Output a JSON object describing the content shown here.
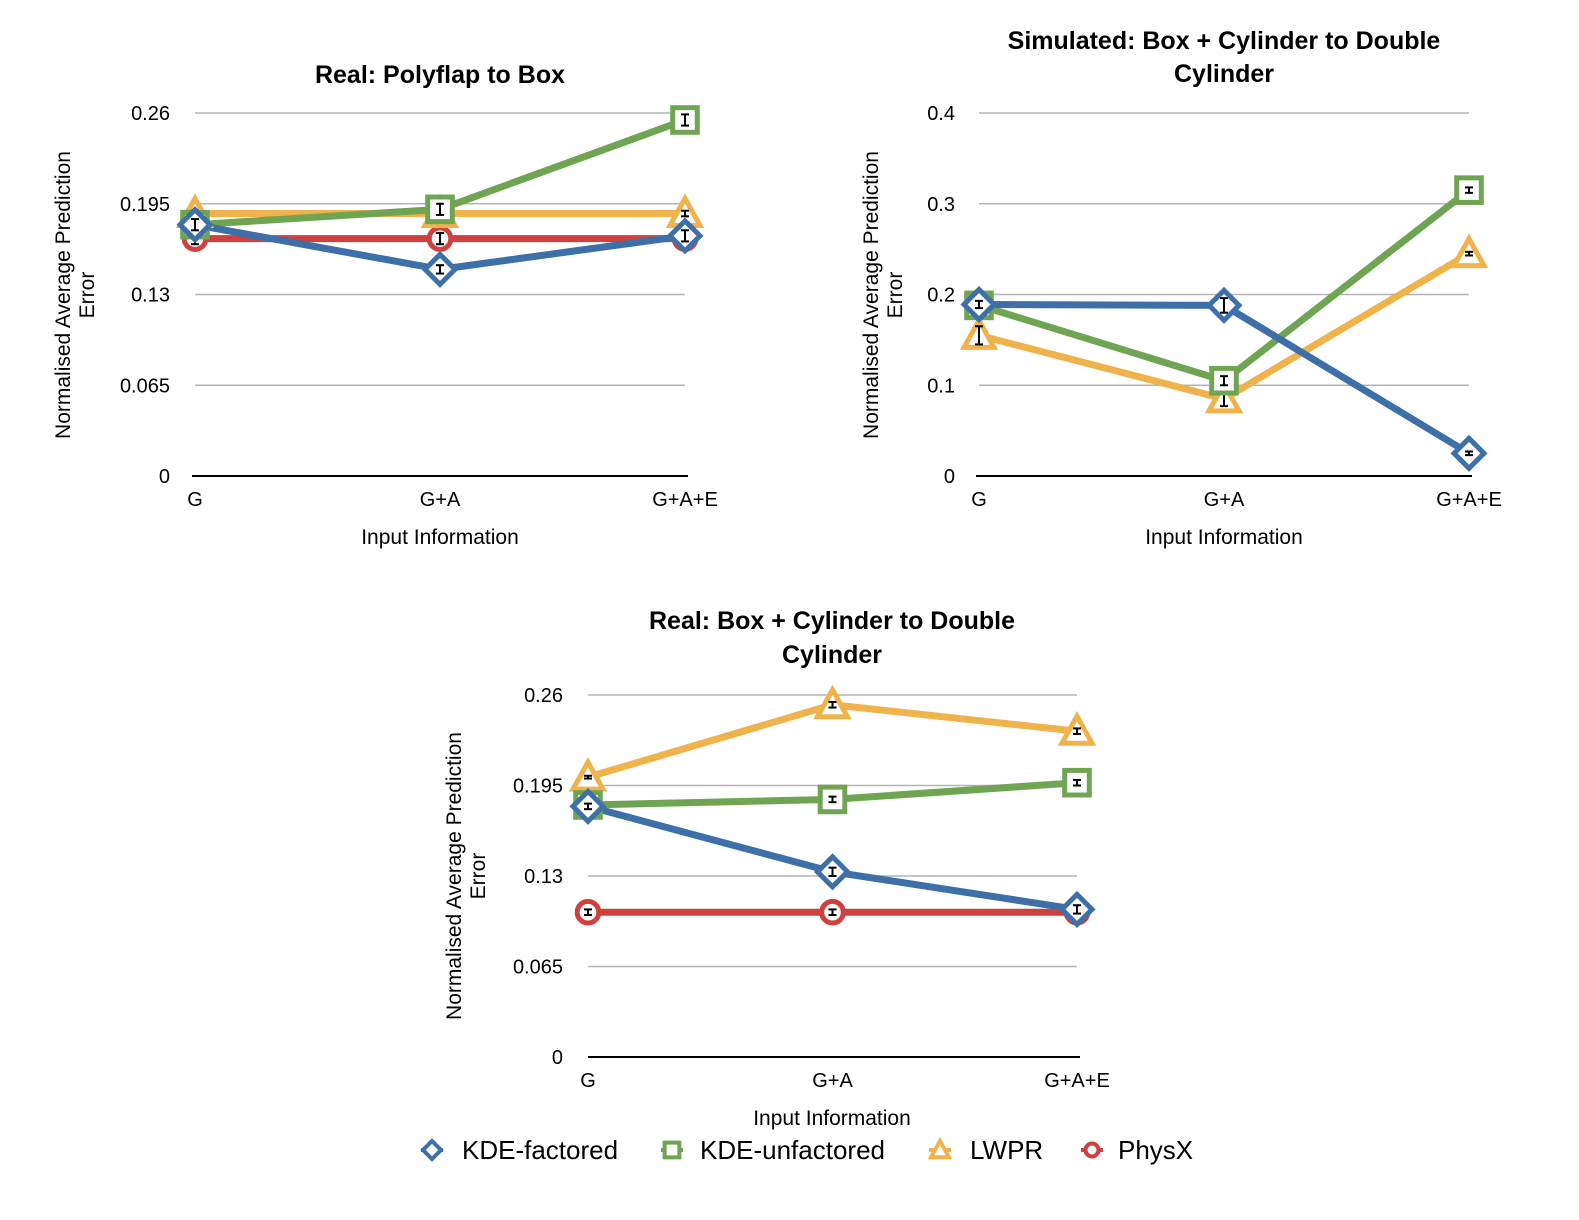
{
  "colors": {
    "KDE-factored": "#3d6fa8",
    "KDE-unfactored": "#6fa552",
    "LWPR": "#f0b24a",
    "PhysX": "#cf403e"
  },
  "legend": {
    "items": [
      {
        "label": "KDE-factored",
        "marker": "diamond",
        "color_key": "KDE-factored"
      },
      {
        "label": "KDE-unfactored",
        "marker": "square",
        "color_key": "KDE-unfactored"
      },
      {
        "label": "LWPR",
        "marker": "triangle",
        "color_key": "LWPR"
      },
      {
        "label": "PhysX",
        "marker": "circle",
        "color_key": "PhysX"
      }
    ]
  },
  "chart_data": [
    {
      "type": "line",
      "title": [
        "Real: Polyflap to Box"
      ],
      "xlabel": "Input Information",
      "ylabel": [
        "Normalised Average Prediction",
        "Error"
      ],
      "categories": [
        "G",
        "G+A",
        "G+A+E"
      ],
      "yticks": [
        "0",
        "0.065",
        "0.13",
        "0.195",
        "0.26"
      ],
      "ylim": [
        0,
        0.26
      ],
      "grid": true,
      "series": [
        {
          "name": "PhysX",
          "values": [
            0.17,
            0.17,
            0.17
          ],
          "err": [
            0.004,
            0.004,
            0.004
          ]
        },
        {
          "name": "LWPR",
          "values": [
            0.188,
            0.188,
            0.188
          ],
          "err": [
            0.002,
            0.002,
            0.002
          ]
        },
        {
          "name": "KDE-unfactored",
          "values": [
            0.18,
            0.191,
            0.255
          ],
          "err": [
            0.003,
            0.004,
            0.004
          ]
        },
        {
          "name": "KDE-factored",
          "values": [
            0.18,
            0.148,
            0.172
          ],
          "err": [
            0.004,
            0.003,
            0.004
          ]
        }
      ]
    },
    {
      "type": "line",
      "title": [
        "Simulated: Box + Cylinder to Double",
        "Cylinder"
      ],
      "xlabel": "Input Information",
      "ylabel": [
        "Normalised Average Prediction",
        "Error"
      ],
      "categories": [
        "G",
        "G+A",
        "G+A+E"
      ],
      "yticks": [
        "0",
        "0.1",
        "0.2",
        "0.3",
        "0.4"
      ],
      "ylim": [
        0,
        0.4
      ],
      "grid": true,
      "series": [
        {
          "name": "LWPR",
          "values": [
            0.155,
            0.085,
            0.245
          ],
          "err": [
            0.01,
            0.008,
            0.002
          ]
        },
        {
          "name": "KDE-unfactored",
          "values": [
            0.188,
            0.105,
            0.315
          ],
          "err": [
            0.004,
            0.005,
            0.003
          ]
        },
        {
          "name": "KDE-factored",
          "values": [
            0.189,
            0.188,
            0.025
          ],
          "err": [
            0.004,
            0.008,
            0.002
          ]
        }
      ]
    },
    {
      "type": "line",
      "title": [
        "Real: Box + Cylinder to Double",
        "Cylinder"
      ],
      "xlabel": "Input Information",
      "ylabel": [
        "Normalised Average Prediction",
        "Error"
      ],
      "categories": [
        "G",
        "G+A",
        "G+A+E"
      ],
      "yticks": [
        "0",
        "0.065",
        "0.13",
        "0.195",
        "0.26"
      ],
      "ylim": [
        0,
        0.26
      ],
      "grid": true,
      "series": [
        {
          "name": "PhysX",
          "values": [
            0.104,
            0.104,
            0.104
          ],
          "err": [
            0.002,
            0.002,
            0.002
          ]
        },
        {
          "name": "LWPR",
          "values": [
            0.201,
            0.253,
            0.234
          ],
          "err": [
            0.001,
            0.002,
            0.002
          ]
        },
        {
          "name": "KDE-unfactored",
          "values": [
            0.181,
            0.185,
            0.197
          ],
          "err": [
            0.002,
            0.002,
            0.002
          ]
        },
        {
          "name": "KDE-factored",
          "values": [
            0.18,
            0.133,
            0.106
          ],
          "err": [
            0.002,
            0.003,
            0.003
          ]
        }
      ]
    }
  ]
}
